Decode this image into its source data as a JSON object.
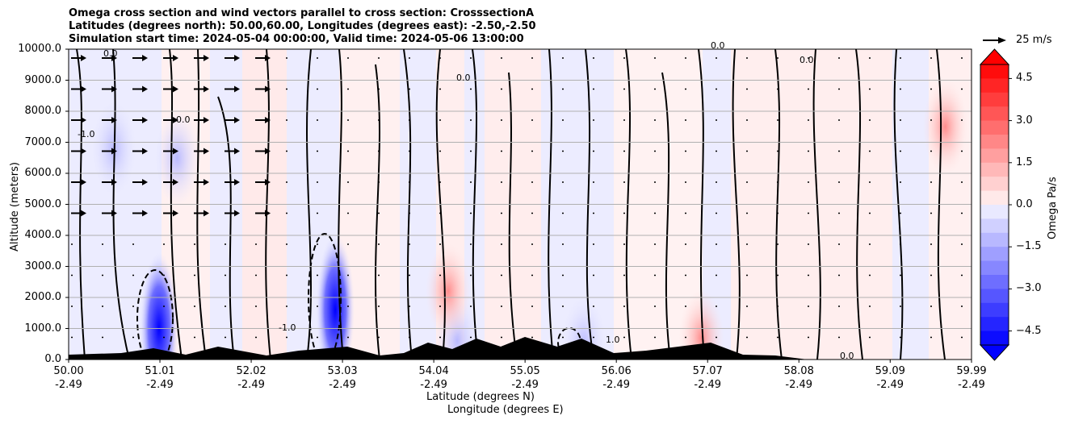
{
  "chart_data": {
    "type": "contour",
    "title_lines": [
      "Omega cross section and wind vectors parallel to cross section: CrosssectionA",
      "Latitudes (degrees north): 50.00,60.00, Longitudes (degrees east): -2.50,-2.50",
      "Simulation start time: 2024-05-04 00:00:00, Valid time: 2024-05-06 13:00:00"
    ],
    "ylabel": "Altitude (meters)",
    "xlabel_lat": "Latitude (degrees N)",
    "xlabel_lon": "Longitude (degrees E)",
    "ylim": [
      0,
      10000
    ],
    "y_ticks": [
      "0.0",
      "1000.0",
      "2000.0",
      "3000.0",
      "4000.0",
      "5000.0",
      "6000.0",
      "7000.0",
      "8000.0",
      "9000.0",
      "10000.0"
    ],
    "x_ticks": [
      {
        "lat": "50.00",
        "lon": "-2.49"
      },
      {
        "lat": "51.01",
        "lon": "-2.49"
      },
      {
        "lat": "52.02",
        "lon": "-2.49"
      },
      {
        "lat": "53.03",
        "lon": "-2.49"
      },
      {
        "lat": "54.04",
        "lon": "-2.49"
      },
      {
        "lat": "55.05",
        "lon": "-2.49"
      },
      {
        "lat": "56.06",
        "lon": "-2.49"
      },
      {
        "lat": "57.07",
        "lon": "-2.49"
      },
      {
        "lat": "58.08",
        "lon": "-2.49"
      },
      {
        "lat": "59.09",
        "lon": "-2.49"
      },
      {
        "lat": "59.99",
        "lon": "-2.49"
      }
    ],
    "colorbar": {
      "label": "Omega Pa/s",
      "range": [
        -5.0,
        5.0
      ],
      "ticks": [
        "4.5",
        "3.0",
        "1.5",
        "0.0",
        "−1.5",
        "−3.0",
        "−4.5"
      ],
      "tick_values": [
        4.5,
        3.0,
        1.5,
        0.0,
        -1.5,
        -3.0,
        -4.5
      ],
      "levels": 20,
      "low_color": "#0000ff",
      "high_color": "#ff0000"
    },
    "quiver_key": {
      "label": "25 m/s"
    },
    "contour_labels": [
      "0.0",
      "-1.0",
      "1.0"
    ],
    "blobs": [
      {
        "lat": 51.0,
        "alt": 1000,
        "value": -5.0
      },
      {
        "lat": 52.95,
        "alt": 1600,
        "value": -5.0
      },
      {
        "lat": 51.2,
        "alt": 6500,
        "value": -1.0
      },
      {
        "lat": 50.5,
        "alt": 6800,
        "value": -0.8
      },
      {
        "lat": 55.7,
        "alt": 500,
        "value": -2.0
      },
      {
        "lat": 54.3,
        "alt": 600,
        "value": -1.5
      },
      {
        "lat": 57.0,
        "alt": 700,
        "value": 2.0
      },
      {
        "lat": 59.7,
        "alt": 7500,
        "value": 0.8
      },
      {
        "lat": 54.2,
        "alt": 2200,
        "value": 1.2
      }
    ]
  }
}
